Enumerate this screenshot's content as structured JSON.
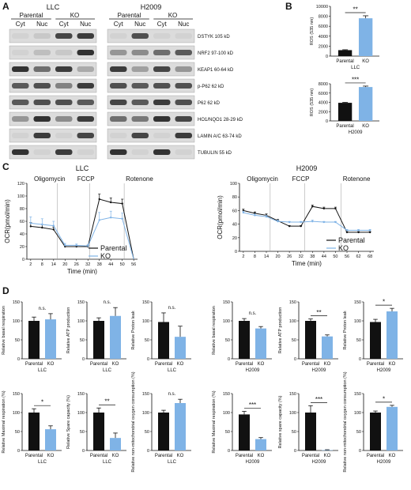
{
  "panels": {
    "A": "A",
    "B": "B",
    "C": "C",
    "D": "D"
  },
  "panel_a": {
    "llc": {
      "title": "LLC",
      "groups": [
        "Parental",
        "KO"
      ],
      "fractions": [
        "Cyt",
        "Nuc",
        "Cyt",
        "Nuc"
      ],
      "bands": [
        [
          0.05,
          0.1,
          0.75,
          0.8
        ],
        [
          0.05,
          0.15,
          0.1,
          0.85
        ],
        [
          0.85,
          0.55,
          0.8,
          0.25
        ],
        [
          0.65,
          0.7,
          0.45,
          0.8
        ],
        [
          0.65,
          0.7,
          0.7,
          0.65
        ],
        [
          0.35,
          0.85,
          0.4,
          0.8
        ],
        [
          0.05,
          0.8,
          0.05,
          0.75
        ],
        [
          0.85,
          0.05,
          0.8,
          0.05
        ]
      ]
    },
    "h2009": {
      "title": "H2009",
      "groups": [
        "Parental",
        "KO"
      ],
      "fractions": [
        "Cyt",
        "Nuc",
        "Cyt",
        "Nuc"
      ],
      "bands": [
        [
          0.05,
          0.7,
          0.05,
          0.05
        ],
        [
          0.35,
          0.4,
          0.55,
          0.65
        ],
        [
          0.8,
          0.3,
          0.75,
          0.35
        ],
        [
          0.7,
          0.65,
          0.7,
          0.7
        ],
        [
          0.75,
          0.65,
          0.8,
          0.7
        ],
        [
          0.55,
          0.5,
          0.85,
          0.75
        ],
        [
          0.05,
          0.75,
          0.05,
          0.8
        ],
        [
          0.85,
          0.05,
          0.85,
          0.05
        ]
      ]
    },
    "markers": [
      "DSTYK 105 kD",
      "NRF2 97-100 kD",
      "KEAP1 60-64 kD",
      "p-P62 62 kD",
      "P62 62 kD",
      "HO1/NQO1 28-29 kD",
      "LAMIN A/C 63-74 kD",
      "TUBULIN 55 kD"
    ]
  },
  "panel_b": [
    {
      "ylabel": "ROS (535 nm)",
      "yticks": [
        "0",
        "2000",
        "4000",
        "6000",
        "8000",
        "10000"
      ],
      "ymax": 10000,
      "categories": [
        "Parental",
        "KO"
      ],
      "values": [
        1200,
        7600
      ],
      "errors": [
        80,
        500
      ],
      "sig": "**",
      "cell": "LLC",
      "colors": [
        "#111111",
        "#7fb3e6"
      ]
    },
    {
      "ylabel": "ROS (535 nm)",
      "yticks": [
        "0",
        "2000",
        "4000",
        "6000",
        "8000"
      ],
      "ymax": 8000,
      "categories": [
        "Parental",
        "KO"
      ],
      "values": [
        3900,
        7300
      ],
      "errors": [
        100,
        200
      ],
      "sig": "***",
      "cell": "H2009",
      "colors": [
        "#111111",
        "#7fb3e6"
      ]
    }
  ],
  "chart_data": [
    {
      "type": "line",
      "cell": "LLC",
      "ylabel": "OCR(pmol/min)",
      "xlabel": "Time (min)",
      "ylim": [
        0,
        120
      ],
      "yticks": [
        "0",
        "20",
        "40",
        "60",
        "80",
        "100",
        "120"
      ],
      "xticks": [
        "2",
        "8",
        "14",
        "20",
        "26",
        "32",
        "38",
        "44",
        "50",
        "56"
      ],
      "injections": [
        {
          "label": "Oligomycin",
          "at": 16
        },
        {
          "label": "FCCP",
          "at": 33
        },
        {
          "label": "Rotenone",
          "at": 51
        }
      ],
      "series": [
        {
          "name": "Parental",
          "color": "#111111",
          "x": [
            2,
            8,
            14,
            20,
            26,
            32,
            38,
            44,
            50,
            56
          ],
          "y": [
            52,
            50,
            47,
            20,
            20,
            20,
            95,
            90,
            88,
            0
          ],
          "err": [
            6,
            5,
            4,
            2,
            2,
            2,
            8,
            7,
            7,
            0
          ]
        },
        {
          "name": "KO",
          "color": "#7fb3e6",
          "x": [
            2,
            8,
            14,
            20,
            26,
            32,
            38,
            44,
            50,
            56
          ],
          "y": [
            57,
            55,
            53,
            22,
            22,
            21,
            62,
            66,
            64,
            0
          ],
          "err": [
            10,
            9,
            7,
            3,
            2,
            2,
            12,
            10,
            9,
            0
          ]
        }
      ]
    },
    {
      "type": "line",
      "cell": "H2009",
      "ylabel": "OCR(pmol/min)",
      "xlabel": "Time (min)",
      "ylim": [
        0,
        100
      ],
      "yticks": [
        "0",
        "20",
        "40",
        "60",
        "80",
        "100"
      ],
      "xticks": [
        "2",
        "8",
        "14",
        "20",
        "26",
        "32",
        "38",
        "44",
        "50",
        "56",
        "62",
        "68"
      ],
      "injections": [
        {
          "label": "Oligomycin",
          "at": 16
        },
        {
          "label": "FCCP",
          "at": 34
        },
        {
          "label": "Rotenone",
          "at": 53
        }
      ],
      "series": [
        {
          "name": "Parental",
          "color": "#111111",
          "x": [
            2,
            8,
            14,
            20,
            26,
            32,
            38,
            44,
            50,
            56,
            62,
            68
          ],
          "y": [
            60,
            56,
            53,
            45,
            37,
            37,
            66,
            63,
            63,
            28,
            28,
            28
          ],
          "err": [
            2,
            2,
            2,
            2,
            1,
            1,
            2,
            2,
            2,
            1,
            1,
            1
          ]
        },
        {
          "name": "KO",
          "color": "#7fb3e6",
          "x": [
            2,
            8,
            14,
            20,
            26,
            32,
            38,
            44,
            50,
            56,
            62,
            68
          ],
          "y": [
            57,
            53,
            51,
            44,
            43,
            43,
            44,
            43,
            43,
            31,
            31,
            31
          ],
          "err": [
            2,
            2,
            2,
            2,
            1,
            1,
            2,
            1,
            1,
            1,
            1,
            1
          ]
        }
      ]
    }
  ],
  "panel_d": [
    {
      "ylabel": "Relative basal respiration",
      "yticks": [
        "0",
        "50",
        "100",
        "150"
      ],
      "ymax": 150,
      "values": [
        100,
        104
      ],
      "errors": [
        10,
        15
      ],
      "sig": "n.s.",
      "cell": "LLC"
    },
    {
      "ylabel": "Relative ATP production",
      "yticks": [
        "0",
        "50",
        "100",
        "150"
      ],
      "ymax": 150,
      "values": [
        100,
        113
      ],
      "errors": [
        8,
        22
      ],
      "sig": "n.s.",
      "cell": "LLC"
    },
    {
      "ylabel": "Relative Proton leak",
      "yticks": [
        "0",
        "50",
        "100",
        "150"
      ],
      "ymax": 150,
      "values": [
        97,
        58
      ],
      "errors": [
        24,
        28
      ],
      "sig": "n.s.",
      "cell": "LLC"
    },
    {
      "ylabel": "Relative basal respiration",
      "yticks": [
        "0",
        "50",
        "100",
        "150"
      ],
      "ymax": 150,
      "values": [
        100,
        80
      ],
      "errors": [
        6,
        5
      ],
      "sig": "n.s.",
      "cell": "H2009"
    },
    {
      "ylabel": "Relative ATP production",
      "yticks": [
        "0",
        "50",
        "100",
        "150"
      ],
      "ymax": 150,
      "values": [
        100,
        59
      ],
      "errors": [
        5,
        4
      ],
      "sig": "**",
      "cell": "H2009"
    },
    {
      "ylabel": "Relative Proton leak",
      "yticks": [
        "0",
        "50",
        "100",
        "150"
      ],
      "ymax": 150,
      "values": [
        97,
        125
      ],
      "errors": [
        7,
        8
      ],
      "sig": "*",
      "cell": "H2009"
    },
    {
      "ylabel": "Relative Maximal respiration (%)",
      "yticks": [
        "0",
        "50",
        "100",
        "150"
      ],
      "ymax": 150,
      "values": [
        100,
        56
      ],
      "errors": [
        10,
        9
      ],
      "sig": "*",
      "cell": "LLC"
    },
    {
      "ylabel": "Relative Spare capacity (%)",
      "yticks": [
        "0",
        "50",
        "100",
        "150"
      ],
      "ymax": 150,
      "values": [
        100,
        33
      ],
      "errors": [
        12,
        13
      ],
      "sig": "**",
      "cell": "LLC"
    },
    {
      "ylabel": "Relative non-mitochondrial oxygen consumption (%)",
      "yticks": [
        "0",
        "50",
        "100",
        "150"
      ],
      "ymax": 150,
      "values": [
        100,
        125
      ],
      "errors": [
        6,
        10
      ],
      "sig": "n.s.",
      "cell": "LLC"
    },
    {
      "ylabel": "Relative Maximal respiration (%)",
      "yticks": [
        "0",
        "50",
        "100",
        "150"
      ],
      "ymax": 150,
      "values": [
        95,
        30
      ],
      "errors": [
        8,
        4
      ],
      "sig": "***",
      "cell": "H2009"
    },
    {
      "ylabel": "Relative spare capacity (%)",
      "yticks": [
        "0",
        "50",
        "100",
        "150"
      ],
      "ymax": 150,
      "values": [
        100,
        1
      ],
      "errors": [
        18,
        1
      ],
      "sig": "***",
      "cell": "H2009"
    },
    {
      "ylabel": "Relative non-mitochondrial oxygen consumption (%)",
      "yticks": [
        "0",
        "50",
        "100",
        "150"
      ],
      "ymax": 150,
      "values": [
        100,
        115
      ],
      "errors": [
        4,
        4
      ],
      "sig": "*",
      "cell": "H2009"
    }
  ],
  "bar_categories": [
    "Parental",
    "KO"
  ],
  "colors": {
    "parental": "#111111",
    "ko": "#7fb3e6",
    "blot_bg": "#dcdcdc"
  }
}
